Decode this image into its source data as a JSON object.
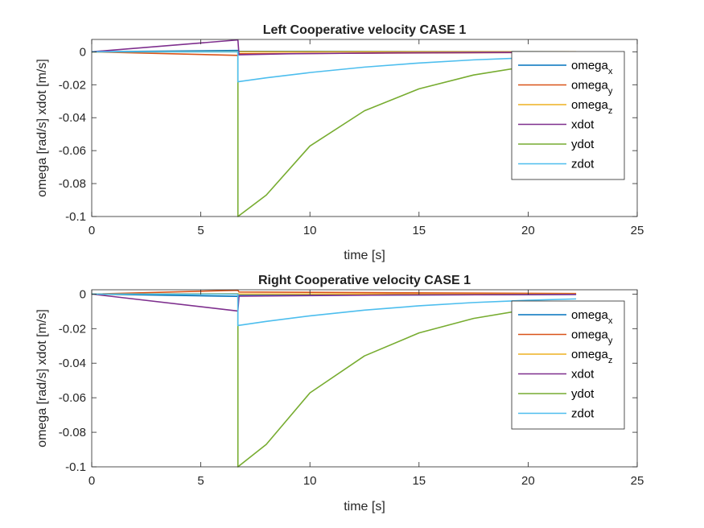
{
  "colors": {
    "omega_x": "#0072BD",
    "omega_y": "#D95319",
    "omega_z": "#EDB120",
    "xdot": "#7E2F8E",
    "ydot": "#77AC30",
    "zdot": "#4DBEEE",
    "axes": "#262626",
    "background": "#ffffff"
  },
  "chart_data": [
    {
      "type": "line",
      "title": "Left Cooperative velocity CASE 1",
      "xlabel": "time [s]",
      "ylabel": "omega [rad/s] xdot [m/s]",
      "xlim": [
        0,
        25
      ],
      "ylim": [
        -0.1,
        0.0075
      ],
      "xticks": [
        "0",
        "5",
        "10",
        "15",
        "20",
        "25"
      ],
      "yticks": [
        "0",
        "-0.02",
        "-0.04",
        "-0.06",
        "-0.08",
        "-0.1"
      ],
      "grid": false,
      "legend_position": "right",
      "series": [
        {
          "key": "omega_x",
          "legend": "omega",
          "sub": "x",
          "points": [
            [
              0,
              0
            ],
            [
              6.7,
              0.0008
            ],
            [
              6.75,
              0.0003
            ],
            [
              22.2,
              0
            ]
          ]
        },
        {
          "key": "omega_y",
          "legend": "omega",
          "sub": "y",
          "points": [
            [
              0,
              0
            ],
            [
              6.7,
              -0.0022
            ],
            [
              6.75,
              -0.0012
            ],
            [
              22.2,
              -0.0003
            ]
          ]
        },
        {
          "key": "omega_z",
          "legend": "omega",
          "sub": "z",
          "points": [
            [
              0,
              0
            ],
            [
              6.7,
              0.0002
            ],
            [
              6.75,
              0
            ],
            [
              22.2,
              0
            ]
          ]
        },
        {
          "key": "xdot",
          "legend": "xdot",
          "sub": "",
          "points": [
            [
              0,
              0
            ],
            [
              6.7,
              0.0072
            ],
            [
              6.75,
              -0.0018
            ],
            [
              9,
              -0.0012
            ],
            [
              14,
              -0.0006
            ],
            [
              22.2,
              -0.0002
            ]
          ]
        },
        {
          "key": "ydot",
          "legend": "ydot",
          "sub": "",
          "points": [
            [
              0,
              0
            ],
            [
              6.7,
              0
            ],
            [
              6.7,
              -0.1
            ],
            [
              8,
              -0.087
            ],
            [
              10,
              -0.0572
            ],
            [
              12.5,
              -0.0358
            ],
            [
              15,
              -0.0225
            ],
            [
              17.5,
              -0.0141
            ],
            [
              20,
              -0.0088
            ],
            [
              22.2,
              -0.0058
            ]
          ]
        },
        {
          "key": "zdot",
          "legend": "zdot",
          "sub": "",
          "points": [
            [
              0,
              0
            ],
            [
              6.7,
              0
            ],
            [
              6.7,
              -0.0182
            ],
            [
              8,
              -0.0158
            ],
            [
              10,
              -0.0126
            ],
            [
              12.5,
              -0.0093
            ],
            [
              15,
              -0.0068
            ],
            [
              17.5,
              -0.0049
            ],
            [
              20,
              -0.0036
            ],
            [
              22.2,
              -0.0028
            ]
          ]
        }
      ]
    },
    {
      "type": "line",
      "title": "Right Cooperative velocity CASE 1",
      "xlabel": "time [s]",
      "ylabel": "omega [rad/s] xdot [m/s]",
      "xlim": [
        0,
        25
      ],
      "ylim": [
        -0.1,
        0.0025
      ],
      "xticks": [
        "0",
        "5",
        "10",
        "15",
        "20",
        "25"
      ],
      "yticks": [
        "0",
        "-0.02",
        "-0.04",
        "-0.06",
        "-0.08",
        "-0.1"
      ],
      "grid": false,
      "legend_position": "right",
      "series": [
        {
          "key": "omega_x",
          "legend": "omega",
          "sub": "x",
          "points": [
            [
              0,
              0
            ],
            [
              6.7,
              -0.0013
            ],
            [
              6.75,
              -0.0008
            ],
            [
              22.2,
              -0.0002
            ]
          ]
        },
        {
          "key": "omega_y",
          "legend": "omega",
          "sub": "y",
          "points": [
            [
              0,
              0
            ],
            [
              6.7,
              0.0022
            ],
            [
              6.75,
              0.0012
            ],
            [
              22.2,
              0.0003
            ]
          ]
        },
        {
          "key": "omega_z",
          "legend": "omega",
          "sub": "z",
          "points": [
            [
              0,
              0
            ],
            [
              6.7,
              0.0002
            ],
            [
              6.75,
              0
            ],
            [
              22.2,
              0
            ]
          ]
        },
        {
          "key": "xdot",
          "legend": "xdot",
          "sub": "",
          "points": [
            [
              0,
              0
            ],
            [
              6.7,
              -0.0098
            ],
            [
              6.75,
              -0.0012
            ],
            [
              14,
              -0.0005
            ],
            [
              22.2,
              -0.0002
            ]
          ]
        },
        {
          "key": "ydot",
          "legend": "ydot",
          "sub": "",
          "points": [
            [
              0,
              0
            ],
            [
              6.7,
              0
            ],
            [
              6.7,
              -0.1
            ],
            [
              8,
              -0.087
            ],
            [
              10,
              -0.0572
            ],
            [
              12.5,
              -0.0358
            ],
            [
              15,
              -0.0225
            ],
            [
              17.5,
              -0.0141
            ],
            [
              20,
              -0.0088
            ],
            [
              22.2,
              -0.0058
            ]
          ]
        },
        {
          "key": "zdot",
          "legend": "zdot",
          "sub": "",
          "points": [
            [
              0,
              0
            ],
            [
              6.7,
              0
            ],
            [
              6.7,
              -0.0182
            ],
            [
              8,
              -0.0158
            ],
            [
              10,
              -0.0126
            ],
            [
              12.5,
              -0.0093
            ],
            [
              15,
              -0.0068
            ],
            [
              17.5,
              -0.0049
            ],
            [
              20,
              -0.0036
            ],
            [
              22.2,
              -0.0028
            ]
          ]
        }
      ]
    }
  ]
}
